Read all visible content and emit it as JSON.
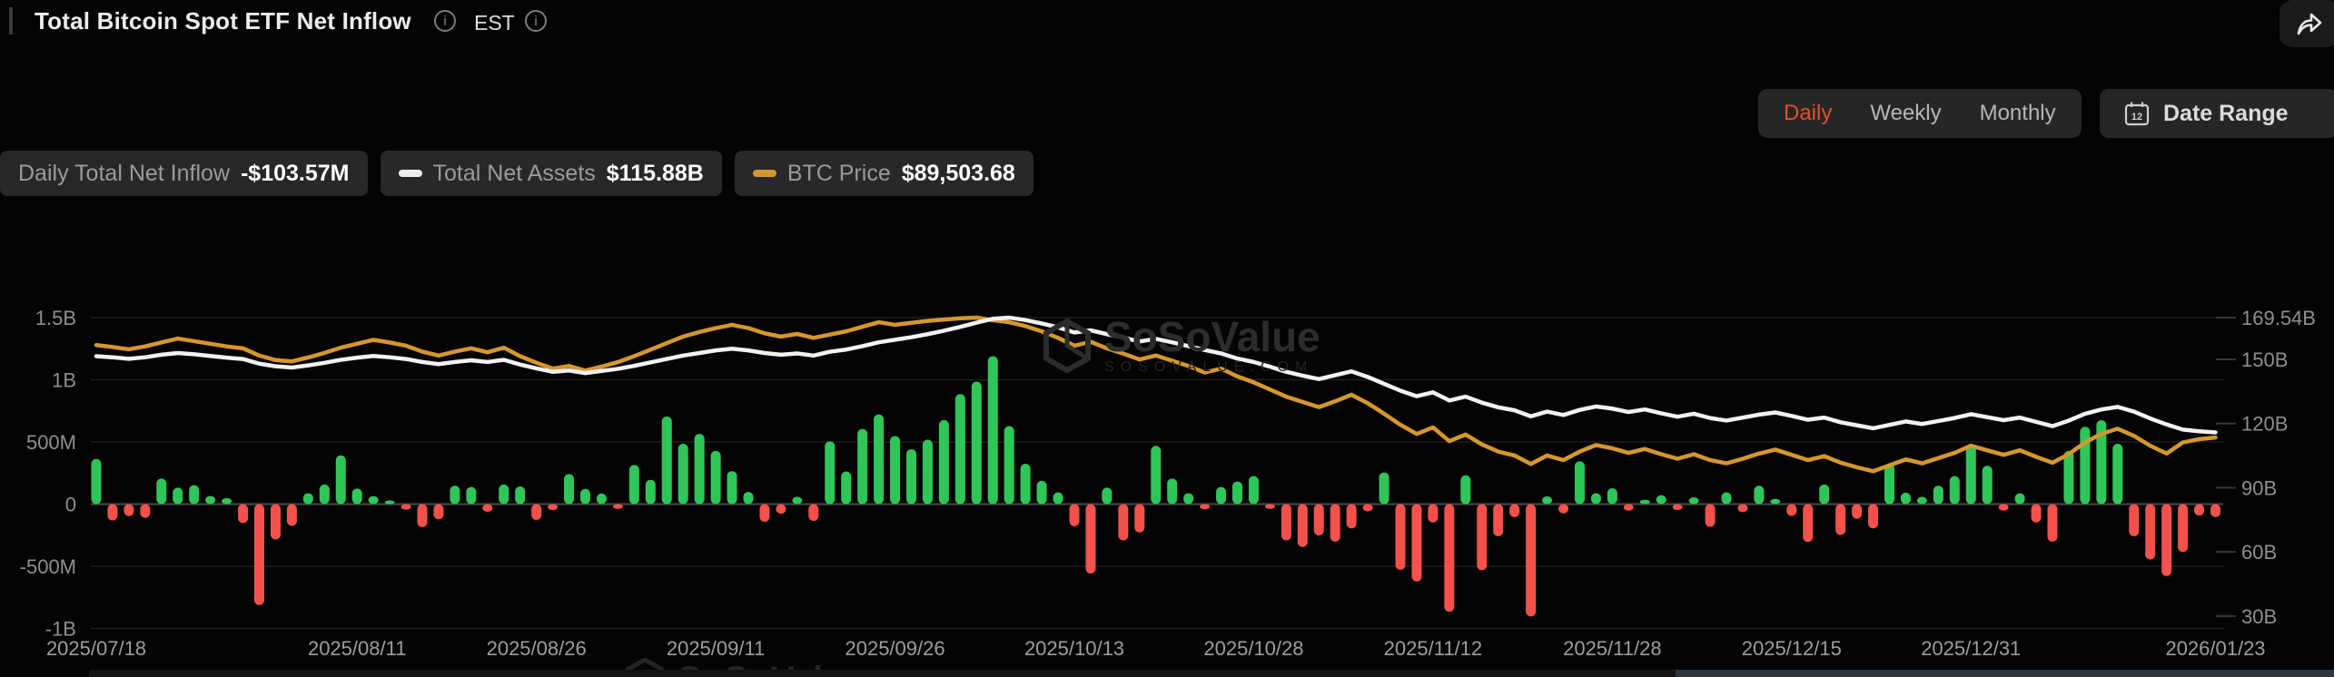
{
  "header": {
    "title": "Total Bitcoin Spot ETF Net Inflow",
    "timezone": "EST",
    "info_icon": "i",
    "share_icon": "share-arrow"
  },
  "controls": {
    "tabs": [
      {
        "label": "Daily",
        "active": true
      },
      {
        "label": "Weekly",
        "active": false
      },
      {
        "label": "Monthly",
        "active": false
      }
    ],
    "date_range_label": "Date Range",
    "calendar_icon_day": "12"
  },
  "legend": [
    {
      "label": "Daily Total Net Inflow",
      "value": "-$103.57M",
      "swatch": null
    },
    {
      "label": "Total Net Assets",
      "value": "$115.88B",
      "swatch": "#ededed"
    },
    {
      "label": "BTC Price",
      "value": "$89,503.68",
      "swatch": "#d6972e"
    }
  ],
  "watermark": {
    "text": "SoSoValue",
    "subtext": "SOSOVALUE.COM"
  },
  "colors": {
    "background": "#040404",
    "accent_daily": "#e0512b",
    "bar_positive": "#2fc659",
    "bar_negative": "#f4514c",
    "line_net_assets": "#f2f2f2",
    "line_btc_price": "#d6972e",
    "gridline": "#232323",
    "zero_line": "#4a4a4a",
    "right_tick": "#383838",
    "axis_text": "#8d9093",
    "x_axis_text": "#9b9ea2"
  },
  "chart_data": {
    "type": "bar+line combo (daily net inflow bars, net assets line, BTC price line)",
    "title": "Total Bitcoin Spot ETF Net Inflow",
    "left_axis": {
      "unit": "USD",
      "tick_labels": [
        "1.5B",
        "1B",
        "500M",
        "0",
        "-500M",
        "-1B"
      ],
      "tick_values_millions": [
        1500,
        1000,
        500,
        0,
        -500,
        -1000
      ],
      "range_millions": [
        -1500,
        1500
      ]
    },
    "right_axis": {
      "unit": "USD billions (Total Net Assets)",
      "tick_labels": [
        "169.54B",
        "150B",
        "120B",
        "90B",
        "60B",
        "30B"
      ],
      "tick_values_billions": [
        169.54,
        150,
        120,
        90,
        60,
        30
      ]
    },
    "x_ticks": {
      "labels": [
        "2025/07/18",
        "2025/08/11",
        "2025/08/26",
        "2025/09/11",
        "2025/09/26",
        "2025/10/13",
        "2025/10/28",
        "2025/11/12",
        "2025/11/28",
        "2025/12/15",
        "2025/12/31",
        "2026/01/23"
      ],
      "indices": [
        0,
        16,
        27,
        38,
        49,
        60,
        71,
        82,
        93,
        104,
        115,
        130
      ]
    },
    "series": [
      {
        "name": "Daily Total Net Inflow",
        "type": "bar",
        "unit": "USD millions",
        "latest_value": -103.57,
        "values": [
          363,
          -131,
          -96,
          -110,
          205,
          132,
          152,
          66,
          48,
          -152,
          -812,
          -285,
          -175,
          88,
          158,
          392,
          125,
          65,
          28,
          -45,
          -185,
          -122,
          148,
          138,
          -62,
          158,
          142,
          -127,
          -48,
          242,
          122,
          85,
          -38,
          315,
          195,
          705,
          485,
          565,
          428,
          265,
          98,
          -142,
          -78,
          58,
          -135,
          505,
          263,
          605,
          722,
          547,
          442,
          518,
          676,
          885,
          985,
          1190,
          628,
          325,
          188,
          95,
          -178,
          -558,
          132,
          -292,
          -228,
          468,
          205,
          88,
          -42,
          138,
          182,
          225,
          -38,
          -292,
          -345,
          -252,
          -302,
          -195,
          -58,
          255,
          -528,
          -622,
          -148,
          -866,
          232,
          -532,
          -258,
          -105,
          -903,
          62,
          -75,
          345,
          88,
          128,
          -52,
          35,
          72,
          -48,
          55,
          -182,
          95,
          -65,
          148,
          42,
          -95,
          -305,
          158,
          -248,
          -118,
          -195,
          325,
          92,
          58,
          148,
          225,
          485,
          308,
          -52,
          88,
          -148,
          -302,
          428,
          622,
          675,
          485,
          -258,
          -445,
          -578,
          -385,
          -92,
          -103.57
        ]
      },
      {
        "name": "Total Net Assets",
        "type": "line",
        "unit": "USD billions",
        "latest_value": 115.88,
        "peak_value": 169.54,
        "values": [
          151.5,
          151.0,
          150.3,
          151.0,
          152.2,
          153.0,
          152.4,
          151.6,
          150.8,
          150.2,
          148.0,
          146.8,
          146.2,
          147.2,
          148.4,
          149.8,
          150.8,
          151.6,
          151.0,
          150.2,
          148.8,
          147.8,
          148.8,
          149.6,
          148.8,
          149.8,
          147.6,
          145.8,
          144.2,
          144.8,
          143.6,
          144.6,
          145.6,
          147.0,
          148.6,
          150.2,
          151.8,
          153.0,
          154.2,
          155.0,
          154.2,
          153.0,
          152.2,
          152.8,
          151.8,
          153.6,
          154.6,
          156.2,
          158.0,
          159.2,
          160.4,
          161.8,
          163.4,
          165.2,
          167.2,
          169.0,
          169.54,
          168.4,
          166.8,
          165.0,
          162.6,
          163.6,
          161.8,
          160.2,
          158.4,
          159.6,
          158.0,
          156.2,
          154.4,
          152.8,
          150.4,
          148.8,
          146.6,
          144.2,
          142.4,
          140.8,
          142.6,
          144.4,
          141.8,
          138.6,
          135.4,
          132.8,
          134.6,
          130.8,
          132.6,
          129.8,
          127.6,
          126.2,
          123.4,
          125.6,
          124.0,
          126.4,
          128.0,
          127.0,
          125.4,
          126.6,
          124.8,
          123.2,
          124.6,
          122.6,
          121.4,
          122.8,
          124.2,
          125.2,
          123.6,
          121.8,
          122.8,
          120.6,
          119.2,
          117.8,
          119.4,
          121.0,
          119.8,
          121.2,
          122.6,
          124.4,
          123.0,
          121.6,
          122.8,
          120.8,
          118.8,
          121.4,
          124.6,
          126.6,
          127.8,
          125.6,
          122.4,
          119.6,
          117.2,
          116.4,
          115.88
        ]
      },
      {
        "name": "BTC Price",
        "type": "line",
        "unit": "USD",
        "latest_value": 89503.68,
        "values": [
          117800,
          117200,
          116500,
          117400,
          118600,
          119800,
          119000,
          118200,
          117400,
          116800,
          114600,
          113200,
          112800,
          114000,
          115400,
          117000,
          118200,
          119400,
          118600,
          117600,
          115800,
          114600,
          115800,
          116800,
          115600,
          117000,
          114400,
          112400,
          110600,
          111400,
          110000,
          111200,
          112600,
          114400,
          116400,
          118400,
          120400,
          121800,
          123000,
          124000,
          123000,
          121400,
          120400,
          121200,
          120000,
          121000,
          122000,
          123400,
          124800,
          124000,
          124600,
          125200,
          125600,
          126000,
          126200,
          125400,
          124800,
          123600,
          122000,
          120000,
          117600,
          118800,
          116800,
          115200,
          113400,
          114600,
          113000,
          111400,
          109400,
          110600,
          108200,
          106400,
          104200,
          102000,
          100400,
          98800,
          100600,
          102600,
          100000,
          96800,
          93400,
          90600,
          92600,
          88400,
          90400,
          87400,
          85200,
          84000,
          81400,
          84000,
          82600,
          85200,
          87200,
          86200,
          84800,
          86000,
          84400,
          83000,
          84400,
          82600,
          81600,
          83000,
          84600,
          85800,
          84200,
          82600,
          83800,
          81800,
          80400,
          79200,
          81000,
          82800,
          81600,
          83200,
          84800,
          87000,
          85600,
          84200,
          85600,
          83600,
          81800,
          84400,
          88000,
          90600,
          92200,
          90000,
          87000,
          84600,
          88000,
          89000,
          89503.68
        ]
      }
    ],
    "legend_position": "top-left badges",
    "grid": "horizontal only"
  }
}
